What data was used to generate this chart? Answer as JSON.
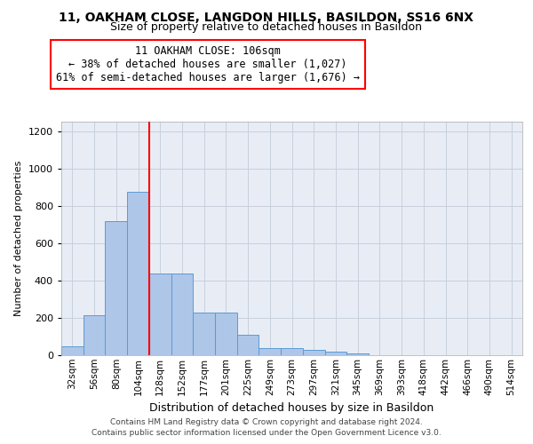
{
  "title1": "11, OAKHAM CLOSE, LANGDON HILLS, BASILDON, SS16 6NX",
  "title2": "Size of property relative to detached houses in Basildon",
  "xlabel": "Distribution of detached houses by size in Basildon",
  "ylabel": "Number of detached properties",
  "categories": [
    "32sqm",
    "56sqm",
    "80sqm",
    "104sqm",
    "128sqm",
    "152sqm",
    "177sqm",
    "201sqm",
    "225sqm",
    "249sqm",
    "273sqm",
    "297sqm",
    "321sqm",
    "345sqm",
    "369sqm",
    "393sqm",
    "418sqm",
    "442sqm",
    "466sqm",
    "490sqm",
    "514sqm"
  ],
  "values": [
    47,
    213,
    720,
    875,
    440,
    437,
    230,
    230,
    108,
    40,
    40,
    27,
    18,
    8,
    2,
    1,
    0,
    0,
    0,
    0,
    0
  ],
  "bar_color": "#aec6e8",
  "bar_edge_color": "#5b9bd5",
  "vline_x": 3.5,
  "vline_color": "red",
  "annotation_text": "11 OAKHAM CLOSE: 106sqm\n← 38% of detached houses are smaller (1,027)\n61% of semi-detached houses are larger (1,676) →",
  "annotation_box_color": "white",
  "annotation_box_edge_color": "red",
  "ylim": [
    0,
    1250
  ],
  "yticks": [
    0,
    200,
    400,
    600,
    800,
    1000,
    1200
  ],
  "footer": "Contains HM Land Registry data © Crown copyright and database right 2024.\nContains public sector information licensed under the Open Government Licence v3.0.",
  "background_color": "#e8edf5",
  "plot_background": "white",
  "grid_color": "#c8d0dc",
  "title1_fontsize": 10,
  "title2_fontsize": 9,
  "ylabel_fontsize": 8,
  "xlabel_fontsize": 9,
  "tick_fontsize": 7.5,
  "ytick_fontsize": 8,
  "footer_fontsize": 6.5,
  "annot_fontsize": 8.5
}
